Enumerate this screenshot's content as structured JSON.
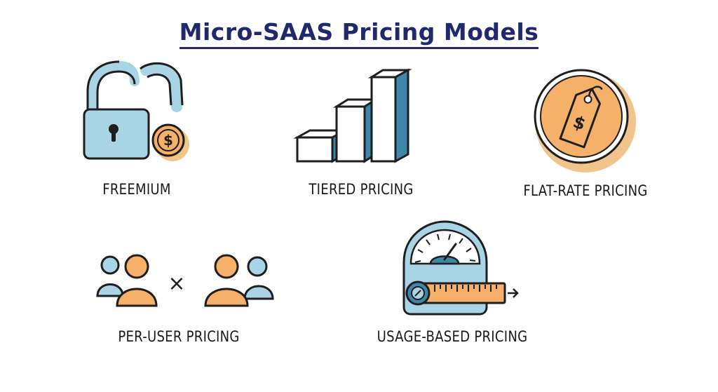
{
  "title": "Micro-SAAS Pricing Models",
  "colors": {
    "title": "#1f2a6e",
    "blue_fill": "#a9d4e6",
    "blue_dark": "#3c87aa",
    "orange_fill": "#f5b06a",
    "orange_shadow": "#f0c48a",
    "outline": "#1e1e1e"
  },
  "models": [
    {
      "label": "FREEMIUM",
      "icon": "lock-coin-icon"
    },
    {
      "label": "TIERED PRICING",
      "icon": "bar-steps-icon"
    },
    {
      "label": "FLAT-RATE PRICING",
      "icon": "price-tag-coin-icon"
    },
    {
      "label": "PER-USER PRICING",
      "icon": "users-multiply-icon",
      "operator": "×"
    },
    {
      "label": "USAGE-BASED PRICING",
      "icon": "meter-gauge-icon"
    }
  ],
  "coin_symbol": "$"
}
